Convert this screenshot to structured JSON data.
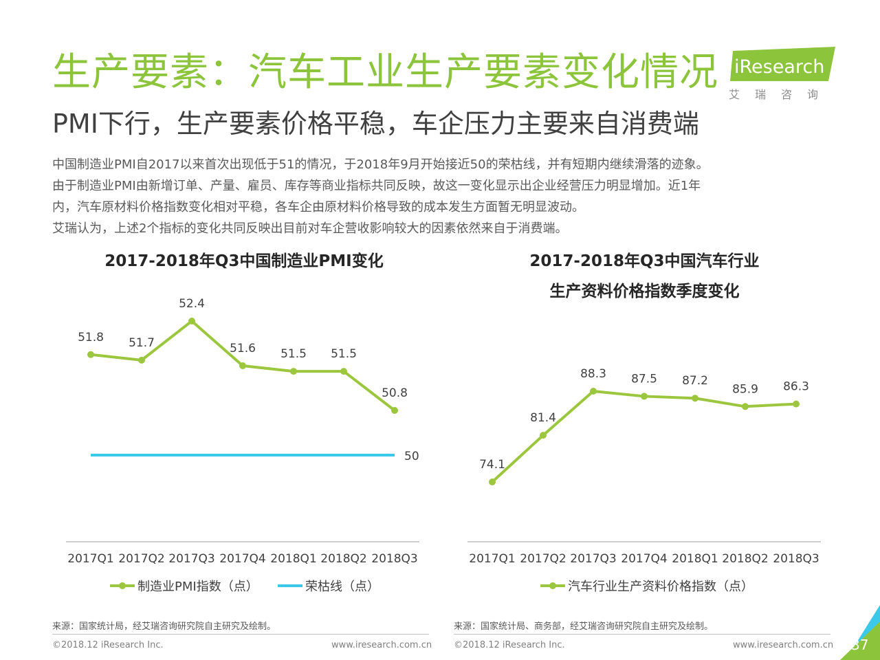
{
  "header": {
    "title": "生产要素：汽车工业生产要素变化情况",
    "subtitle": "PMI下行，生产要素价格平稳，车企压力主要来自消费端",
    "logo_text": "iResearch",
    "logo_subtext": "艾瑞咨询"
  },
  "paragraph": {
    "line1": "中国制造业PMI自2017以来首次出现低于51的情况，于2018年9月开始接近50的荣枯线，并有短期内继续滑落的迹象。",
    "line2": "由于制造业PMI由新增订单、产量、雇员、库存等商业指标共同反映，故这一变化显示出企业经营压力明显增加。近1年",
    "line3": "内，汽车原材料价格指数变化相对平稳，各车企由原材料价格导致的成本发生方面暂无明显波动。",
    "line4": "艾瑞认为，上述2个指标的变化共同反映出目前对车企营收影响较大的因素依然来自于消费端。"
  },
  "colors": {
    "accent_green": "#8cc43c",
    "line_blue": "#3cc8e8",
    "title_green": "#8cc43c"
  },
  "chart_data": [
    {
      "type": "line",
      "title": "2017-2018年Q3中国制造业PMI变化",
      "categories": [
        "2017Q1",
        "2017Q2",
        "2017Q3",
        "2017Q4",
        "2018Q1",
        "2018Q2",
        "2018Q3"
      ],
      "series": [
        {
          "name": "制造业PMI指数（点）",
          "values": [
            51.8,
            51.7,
            52.4,
            51.6,
            51.5,
            51.5,
            50.8
          ],
          "color": "#9dc63f"
        },
        {
          "name": "荣枯线（点）",
          "values": [
            50,
            50,
            50,
            50,
            50,
            50,
            50
          ],
          "color": "#3cc8e8",
          "end_label": "50"
        }
      ],
      "source": "来源：国家统计局，经艾瑞咨询研究院自主研究及绘制。"
    },
    {
      "type": "line",
      "title_line1": "2017-2018年Q3中国汽车行业",
      "title_line2": "生产资料价格指数季度变化",
      "categories": [
        "2017Q1",
        "2017Q2",
        "2017Q3",
        "2017Q4",
        "2018Q1",
        "2018Q2",
        "2018Q3"
      ],
      "series": [
        {
          "name": "汽车行业生产资料价格指数（点）",
          "values": [
            74.1,
            81.4,
            88.3,
            87.5,
            87.2,
            85.9,
            86.3
          ],
          "color": "#9dc63f"
        }
      ],
      "source": "来源：国家统计局、商务部，经艾瑞咨询研究院自主研究及绘制。"
    }
  ],
  "footer": {
    "copyright_left": "©2018.12 iResearch Inc.",
    "url_left": "www.iresearch.com.cn",
    "copyright_right": "©2018.12 iResearch Inc.",
    "url_right": "www.iresearch.com.cn",
    "page_number": "37"
  }
}
